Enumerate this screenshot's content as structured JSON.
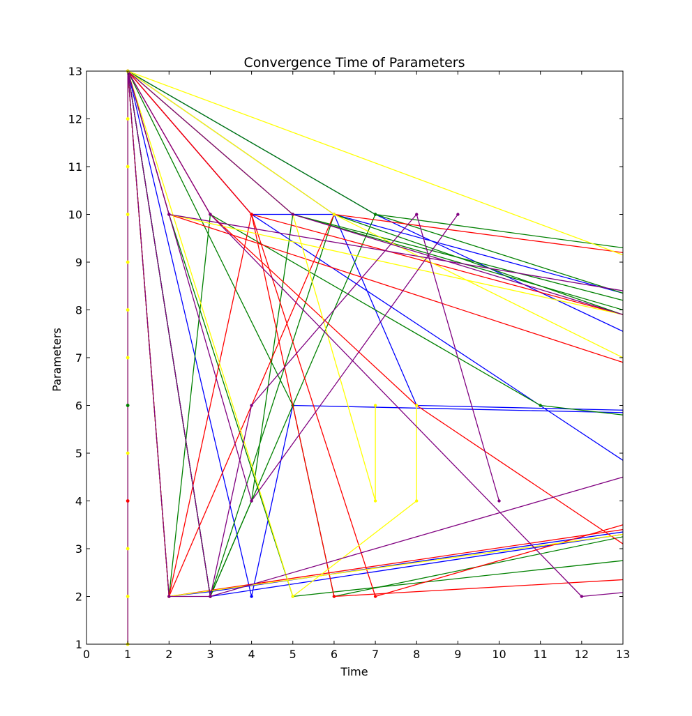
{
  "chart_data": {
    "type": "line",
    "title": "Convergence Time of Parameters",
    "xlabel": "Time",
    "ylabel": "Parameters",
    "xlim": [
      0,
      13
    ],
    "ylim": [
      1,
      13
    ],
    "x_ticks": [
      0,
      1,
      2,
      3,
      4,
      5,
      6,
      7,
      8,
      9,
      10,
      11,
      12,
      13
    ],
    "y_ticks": [
      1,
      2,
      3,
      4,
      5,
      6,
      7,
      8,
      9,
      10,
      11,
      12,
      13
    ],
    "grid": false,
    "legend": "none",
    "colors": {
      "blue": "#0000ff",
      "green": "#008000",
      "red": "#ff0000",
      "yellow": "#ffff00",
      "purple": "#800080"
    },
    "series": [
      {
        "color": "blue",
        "x": [
          1,
          4,
          6,
          8,
          13
        ],
        "y": [
          13,
          10,
          10,
          6,
          5.9
        ]
      },
      {
        "color": "blue",
        "x": [
          1,
          6,
          13
        ],
        "y": [
          13,
          10,
          8.35
        ]
      },
      {
        "color": "blue",
        "x": [
          1,
          7,
          13
        ],
        "y": [
          13,
          10,
          7.55
        ]
      },
      {
        "color": "blue",
        "x": [
          1,
          3,
          13
        ],
        "y": [
          13,
          2,
          3.3
        ]
      },
      {
        "color": "blue",
        "x": [
          1,
          4,
          5,
          13
        ],
        "y": [
          13,
          2,
          6,
          5.85
        ]
      },
      {
        "color": "blue",
        "x": [
          1,
          4,
          13
        ],
        "y": [
          13,
          10,
          4.85
        ]
      },
      {
        "color": "blue",
        "x": [
          1,
          2,
          3,
          13
        ],
        "y": [
          13,
          2,
          2.1,
          3.35
        ]
      },
      {
        "color": "green",
        "x": [
          1,
          5,
          13
        ],
        "y": [
          13,
          10,
          8.2
        ]
      },
      {
        "color": "green",
        "x": [
          1,
          7,
          13
        ],
        "y": [
          13,
          10,
          9.3
        ]
      },
      {
        "color": "green",
        "x": [
          1,
          3,
          6,
          13
        ],
        "y": [
          13,
          2,
          10,
          7.9
        ]
      },
      {
        "color": "green",
        "x": [
          1,
          2,
          3,
          11,
          13
        ],
        "y": [
          13,
          2,
          10,
          6,
          5.8
        ]
      },
      {
        "color": "green",
        "x": [
          1,
          5,
          6,
          13
        ],
        "y": [
          13,
          6,
          2,
          3.25
        ]
      },
      {
        "color": "green",
        "x": [
          1,
          3,
          7,
          13
        ],
        "y": [
          13,
          2,
          10,
          8.35
        ]
      },
      {
        "color": "green",
        "x": [
          1,
          3,
          4,
          5,
          13
        ],
        "y": [
          13,
          2,
          4,
          10,
          8.0
        ]
      },
      {
        "color": "green",
        "x": [
          1,
          2,
          5,
          13
        ],
        "y": [
          13,
          10,
          2,
          2.75
        ]
      },
      {
        "color": "green",
        "x": [
          1,
          1
        ],
        "y": [
          1,
          13
        ]
      },
      {
        "color": "red",
        "x": [
          1,
          3,
          8,
          13
        ],
        "y": [
          13,
          10,
          6,
          3.1
        ]
      },
      {
        "color": "red",
        "x": [
          1,
          4,
          7,
          13
        ],
        "y": [
          13,
          10,
          2,
          3.5
        ]
      },
      {
        "color": "red",
        "x": [
          1,
          2,
          6,
          13
        ],
        "y": [
          13,
          2,
          10,
          9.2
        ]
      },
      {
        "color": "red",
        "x": [
          1,
          2,
          4,
          13
        ],
        "y": [
          13,
          2,
          10,
          7.9
        ]
      },
      {
        "color": "red",
        "x": [
          1,
          4,
          6,
          13
        ],
        "y": [
          13,
          10,
          2,
          2.35
        ]
      },
      {
        "color": "red",
        "x": [
          1,
          2,
          13
        ],
        "y": [
          13,
          10,
          6.9
        ]
      },
      {
        "color": "red",
        "x": [
          1,
          2,
          13
        ],
        "y": [
          13,
          2,
          3.4
        ]
      },
      {
        "color": "red",
        "x": [
          1,
          1
        ],
        "y": [
          1,
          13
        ]
      },
      {
        "color": "yellow",
        "x": [
          1,
          13
        ],
        "y": [
          13,
          9.15
        ]
      },
      {
        "color": "yellow",
        "x": [
          1,
          5,
          7,
          7
        ],
        "y": [
          13,
          10,
          4,
          6
        ]
      },
      {
        "color": "yellow",
        "x": [
          1,
          6,
          13
        ],
        "y": [
          13,
          10,
          7.0
        ]
      },
      {
        "color": "yellow",
        "x": [
          1,
          2,
          13
        ],
        "y": [
          13,
          10,
          7.9
        ]
      },
      {
        "color": "yellow",
        "x": [
          1,
          5,
          8,
          8
        ],
        "y": [
          13,
          2,
          4,
          6
        ]
      },
      {
        "color": "yellow",
        "x": [
          1,
          2,
          13
        ],
        "y": [
          13,
          2,
          3.3
        ]
      },
      {
        "color": "yellow",
        "x": [
          1,
          1
        ],
        "y": [
          1,
          13
        ]
      },
      {
        "color": "purple",
        "x": [
          1,
          2,
          4,
          9
        ],
        "y": [
          13,
          10,
          4,
          10
        ]
      },
      {
        "color": "purple",
        "x": [
          1,
          3,
          4,
          8,
          10
        ],
        "y": [
          13,
          2,
          6,
          10,
          4
        ]
      },
      {
        "color": "purple",
        "x": [
          1,
          2,
          13
        ],
        "y": [
          13,
          10,
          8.4
        ]
      },
      {
        "color": "purple",
        "x": [
          1,
          3,
          12,
          13
        ],
        "y": [
          13,
          10,
          2,
          2.08
        ]
      },
      {
        "color": "purple",
        "x": [
          1,
          2,
          3,
          13
        ],
        "y": [
          13,
          2,
          2,
          4.5
        ]
      },
      {
        "color": "purple",
        "x": [
          1,
          5,
          13
        ],
        "y": [
          13,
          10,
          7.9
        ]
      },
      {
        "color": "purple",
        "x": [
          1,
          1
        ],
        "y": [
          1,
          13
        ]
      }
    ],
    "markers": [
      {
        "color": "yellow",
        "x": 1,
        "y": 1
      },
      {
        "color": "yellow",
        "x": 1,
        "y": 2
      },
      {
        "color": "yellow",
        "x": 1,
        "y": 3
      },
      {
        "color": "red",
        "x": 1,
        "y": 4
      },
      {
        "color": "yellow",
        "x": 1,
        "y": 5
      },
      {
        "color": "green",
        "x": 1,
        "y": 6
      },
      {
        "color": "yellow",
        "x": 1,
        "y": 7
      },
      {
        "color": "yellow",
        "x": 1,
        "y": 8
      },
      {
        "color": "yellow",
        "x": 1,
        "y": 9
      },
      {
        "color": "yellow",
        "x": 1,
        "y": 10
      },
      {
        "color": "yellow",
        "x": 1,
        "y": 11
      },
      {
        "color": "yellow",
        "x": 1,
        "y": 12
      },
      {
        "color": "yellow",
        "x": 1,
        "y": 13
      }
    ]
  }
}
